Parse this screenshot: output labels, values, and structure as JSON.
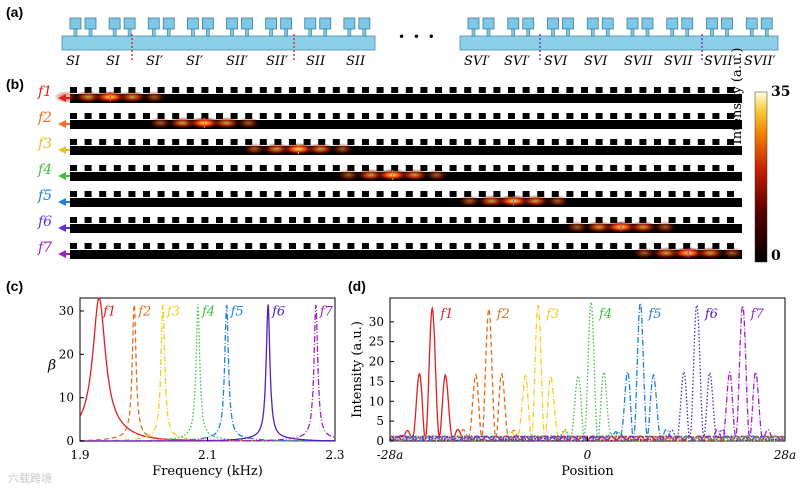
{
  "panels": {
    "a": "(a)",
    "b": "(b)",
    "c": "(c)",
    "d": "(d)"
  },
  "panel_a": {
    "ellipsis": "• • •",
    "left_labels": [
      "S_I",
      "S_I",
      "S_I'",
      "S_I'",
      "S_II'",
      "S_II'",
      "S_II",
      "S_II"
    ],
    "left_label_text": [
      "SI",
      "SI",
      "SI′",
      "SI′",
      "SII′",
      "SII′",
      "SII",
      "SII"
    ],
    "right_label_text": [
      "SVI′",
      "SVI′",
      "SVI",
      "SVI",
      "SVII",
      "SVII",
      "SVII′",
      "SVII′"
    ],
    "colors": {
      "waveguide": "#8ecfe8",
      "resonator": "#7cc8e6",
      "red_divider": "#d9323a",
      "purple_divider": "#7a38c8"
    }
  },
  "panel_b": {
    "rows": [
      "f1",
      "f2",
      "f3",
      "f4",
      "f5",
      "f6",
      "f7"
    ],
    "row_colors": [
      "#e02020",
      "#f07020",
      "#e8c020",
      "#40c040",
      "#2080e0",
      "#6030d0",
      "#a020c0"
    ],
    "colorbar": {
      "max": "35",
      "min": "0",
      "label": "Intensity (a.u.)"
    }
  },
  "chart_data": [
    {
      "type": "line",
      "panel": "c",
      "xlabel": "Frequency (kHz)",
      "ylabel": "β",
      "xlim": [
        1.9,
        2.3
      ],
      "ylim": [
        0,
        33
      ],
      "xticks": [
        "1.9",
        "2.1",
        "2.3"
      ],
      "yticks": [
        "0",
        "10",
        "20",
        "30"
      ],
      "series": [
        {
          "name": "f1",
          "peak_freq": 1.93,
          "peak_value": 31,
          "color": "#e02020",
          "style": "solid"
        },
        {
          "name": "f2",
          "peak_freq": 1.985,
          "peak_value": 31,
          "color": "#e07020",
          "style": "dashed"
        },
        {
          "name": "f3",
          "peak_freq": 2.03,
          "peak_value": 31,
          "color": "#f0d020",
          "style": "dashdot"
        },
        {
          "name": "f4",
          "peak_freq": 2.085,
          "peak_value": 31,
          "color": "#40c040",
          "style": "dotted"
        },
        {
          "name": "f5",
          "peak_freq": 2.13,
          "peak_value": 31,
          "color": "#2080e0",
          "style": "dashdot"
        },
        {
          "name": "f6",
          "peak_freq": 2.195,
          "peak_value": 31,
          "color": "#5020c0",
          "style": "solid"
        },
        {
          "name": "f7",
          "peak_freq": 2.27,
          "peak_value": 31,
          "color": "#a020c0",
          "style": "dashdot"
        }
      ]
    },
    {
      "type": "line",
      "panel": "d",
      "xlabel": "Position",
      "ylabel": "Intensity (a.u.)",
      "xlim": [
        -28,
        28
      ],
      "ylim": [
        0,
        36
      ],
      "xticks": [
        "-28a",
        "0",
        "28a"
      ],
      "yticks": [
        "0",
        "5",
        "10",
        "15",
        "20",
        "25",
        "30"
      ],
      "series": [
        {
          "name": "f1",
          "center": -22,
          "peak_value": 33,
          "color": "#e02020",
          "style": "solid"
        },
        {
          "name": "f2",
          "center": -14,
          "peak_value": 33,
          "color": "#e07020",
          "style": "dashed"
        },
        {
          "name": "f3",
          "center": -7,
          "peak_value": 33,
          "color": "#f0d020",
          "style": "dashdot"
        },
        {
          "name": "f4",
          "center": 0.5,
          "peak_value": 34,
          "color": "#40c040",
          "style": "dotted"
        },
        {
          "name": "f5",
          "center": 7.5,
          "peak_value": 34,
          "color": "#2080e0",
          "style": "dashdot"
        },
        {
          "name": "f6",
          "center": 15.5,
          "peak_value": 34,
          "color": "#5020c0",
          "style": "dotted"
        },
        {
          "name": "f7",
          "center": 22,
          "peak_value": 34,
          "color": "#a020c0",
          "style": "dashdot"
        }
      ]
    }
  ],
  "watermark": "六载跨境"
}
